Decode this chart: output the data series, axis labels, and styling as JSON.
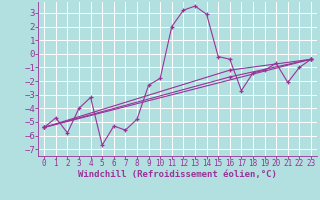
{
  "xlabel": "Windchill (Refroidissement éolien,°C)",
  "background_color": "#b2e0e0",
  "grid_color": "#ffffff",
  "line_color": "#993399",
  "xlim": [
    -0.5,
    23.5
  ],
  "ylim": [
    -7.5,
    3.8
  ],
  "yticks": [
    -7,
    -6,
    -5,
    -4,
    -3,
    -2,
    -1,
    0,
    1,
    2,
    3
  ],
  "xticks": [
    0,
    1,
    2,
    3,
    4,
    5,
    6,
    7,
    8,
    9,
    10,
    11,
    12,
    13,
    14,
    15,
    16,
    17,
    18,
    19,
    20,
    21,
    22,
    23
  ],
  "series1": [
    [
      0,
      -5.4
    ],
    [
      1,
      -4.7
    ],
    [
      2,
      -5.8
    ],
    [
      3,
      -4.0
    ],
    [
      4,
      -3.2
    ],
    [
      5,
      -6.7
    ],
    [
      6,
      -5.3
    ],
    [
      7,
      -5.6
    ],
    [
      8,
      -4.8
    ],
    [
      9,
      -2.3
    ],
    [
      10,
      -1.8
    ],
    [
      11,
      2.0
    ],
    [
      12,
      3.2
    ],
    [
      13,
      3.5
    ],
    [
      14,
      2.9
    ],
    [
      15,
      -0.2
    ],
    [
      16,
      -0.4
    ],
    [
      17,
      -2.7
    ],
    [
      18,
      -1.4
    ],
    [
      19,
      -1.2
    ],
    [
      20,
      -0.7
    ],
    [
      21,
      -2.1
    ],
    [
      22,
      -1.0
    ],
    [
      23,
      -0.4
    ]
  ],
  "series2": [
    [
      0,
      -5.4
    ],
    [
      23,
      -0.4
    ]
  ],
  "series3": [
    [
      0,
      -5.4
    ],
    [
      16,
      -1.7
    ],
    [
      23,
      -0.4
    ]
  ],
  "series4": [
    [
      0,
      -5.4
    ],
    [
      16,
      -1.2
    ],
    [
      23,
      -0.4
    ]
  ],
  "font_size_xlabel": 6.5,
  "font_size_ytick": 6.5,
  "font_size_xtick": 5.5
}
